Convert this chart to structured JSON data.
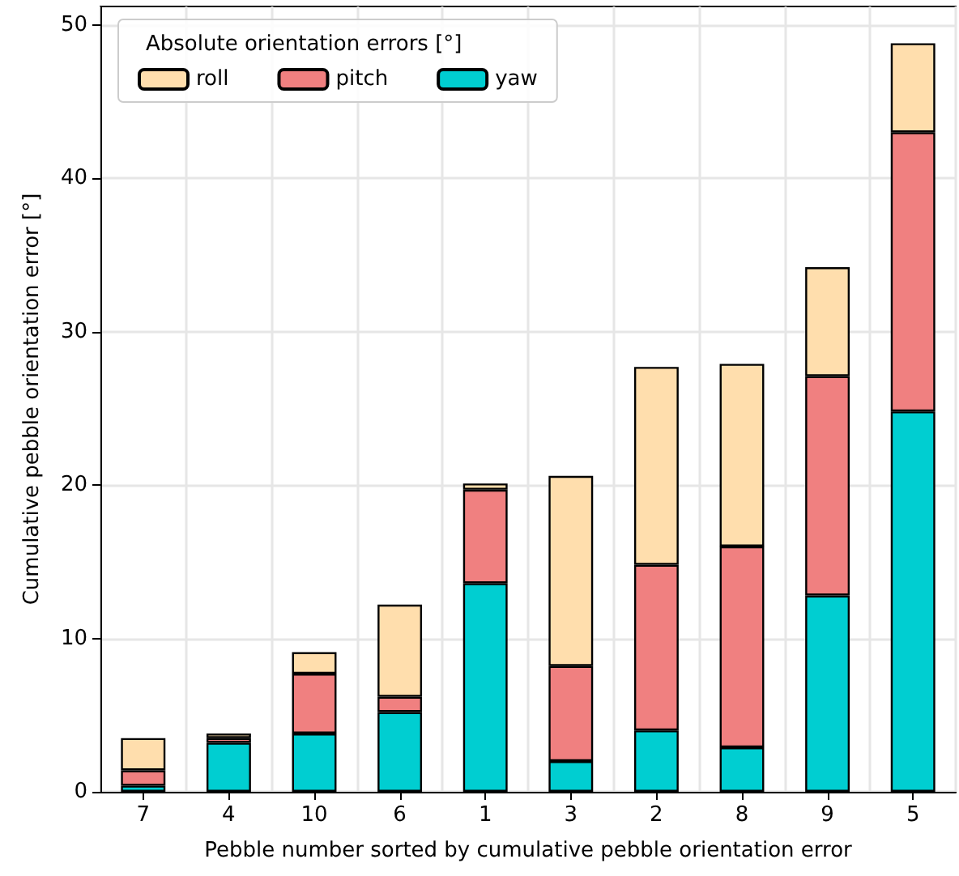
{
  "chart_data": {
    "type": "bar",
    "stacked": true,
    "xlabel": "Pebble number sorted by cumulative pebble orientation error",
    "ylabel": "Cumulative pebble orientation error [°]",
    "legend_title": "Absolute orientation errors [°]",
    "categories": [
      "7",
      "4",
      "10",
      "6",
      "1",
      "3",
      "2",
      "8",
      "9",
      "5"
    ],
    "series": [
      {
        "name": "yaw",
        "color": "#00ced1",
        "values": [
          0.4,
          3.2,
          3.8,
          5.2,
          13.6,
          2.0,
          4.0,
          2.9,
          12.8,
          24.8
        ]
      },
      {
        "name": "pitch",
        "color": "#f08080",
        "values": [
          1.0,
          0.3,
          3.9,
          1.0,
          6.1,
          6.2,
          10.8,
          13.1,
          14.3,
          18.2
        ]
      },
      {
        "name": "roll",
        "color": "#ffdead",
        "values": [
          2.1,
          0.3,
          1.4,
          6.0,
          0.4,
          12.4,
          12.9,
          11.9,
          7.1,
          5.8
        ]
      }
    ],
    "ylim": [
      0,
      51.2
    ],
    "yticks": [
      0,
      10,
      20,
      30,
      40,
      50
    ],
    "grid": true,
    "legend": "top left"
  }
}
